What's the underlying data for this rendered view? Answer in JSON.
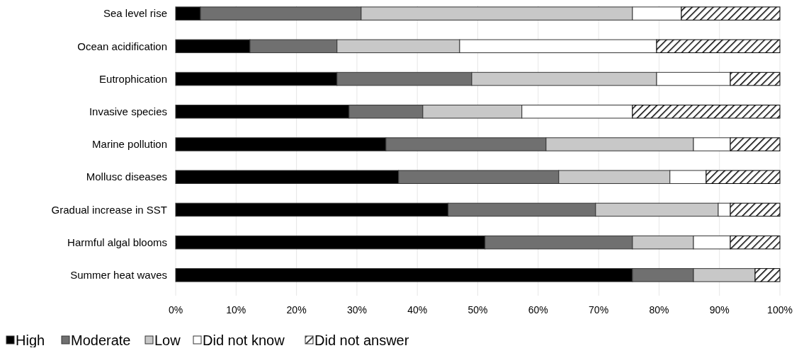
{
  "chart_data": {
    "type": "bar",
    "orientation": "horizontal",
    "stacked": true,
    "categories": [
      "Sea level rise",
      "Ocean acidification",
      "Eutrophication",
      "Invasive species",
      "Marine pollution",
      "Mollusc diseases",
      "Gradual increase in SST",
      "Harmful algal blooms",
      "Summer heat waves"
    ],
    "series": [
      {
        "name": "High",
        "color": "#000000",
        "values": [
          4.1,
          12.3,
          26.7,
          28.7,
          34.8,
          36.9,
          45.1,
          51.2,
          75.6
        ]
      },
      {
        "name": "Moderate",
        "color": "#707070",
        "values": [
          26.6,
          14.4,
          22.3,
          12.2,
          26.5,
          26.5,
          24.4,
          24.4,
          10.1
        ]
      },
      {
        "name": "Low",
        "color": "#c8c8c8",
        "values": [
          44.9,
          20.3,
          30.6,
          16.4,
          24.4,
          18.4,
          20.3,
          10.1,
          10.2
        ]
      },
      {
        "name": "Did not know",
        "color": "#ffffff",
        "values": [
          8.1,
          32.6,
          12.2,
          18.3,
          6.1,
          6.0,
          2.0,
          6.1,
          0
        ]
      },
      {
        "name": "Did not answer",
        "color": "#000000",
        "values": [
          16.3,
          20.4,
          8.2,
          24.4,
          8.2,
          12.2,
          8.2,
          8.2,
          4.1
        ]
      }
    ],
    "xlim": [
      0,
      100
    ],
    "xticks": [
      {
        "value": 0,
        "label": "0%"
      },
      {
        "value": 10,
        "label": "10%"
      },
      {
        "value": 20,
        "label": "20%"
      },
      {
        "value": 30,
        "label": "30%"
      },
      {
        "value": 40,
        "label": "40%"
      },
      {
        "value": 50,
        "label": "50%"
      },
      {
        "value": 60,
        "label": "60%"
      },
      {
        "value": 70,
        "label": "70%"
      },
      {
        "value": 80,
        "label": "80%"
      },
      {
        "value": 90,
        "label": "90%"
      },
      {
        "value": 100,
        "label": "100%"
      }
    ],
    "grid": "x",
    "legend": "bottom"
  }
}
